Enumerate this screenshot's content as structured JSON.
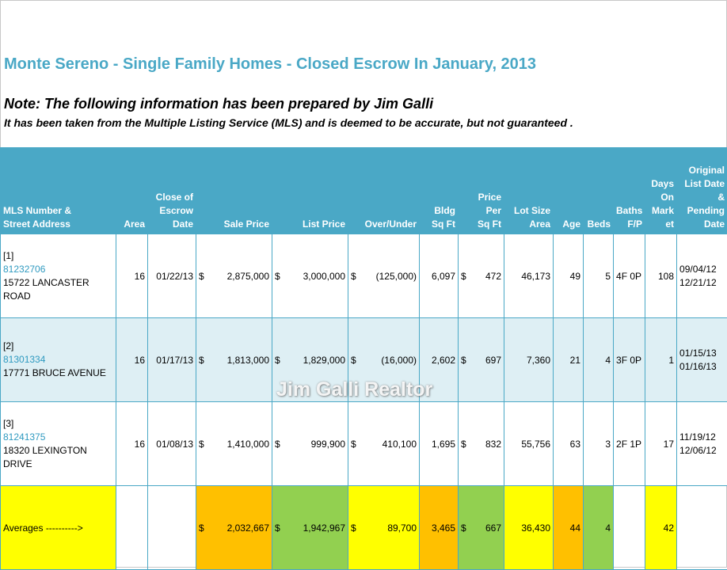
{
  "header": {
    "title": "Monte Sereno - Single Family Homes - Closed Escrow In January, 2013",
    "note": "Note:  The following information has been prepared by Jim Galli",
    "disclaimer": "It has been taken from the Multiple Listing Service (MLS) and is deemed to be accurate, but not guaranteed ."
  },
  "columns": {
    "mls": [
      "MLS Number &",
      "Street Address"
    ],
    "area": [
      "Area"
    ],
    "close": [
      "Close of",
      "Escrow",
      "Date"
    ],
    "sale": [
      "Sale Price"
    ],
    "list": [
      "List Price"
    ],
    "over": [
      "Over/Under"
    ],
    "bldg": [
      "Bldg",
      "Sq Ft"
    ],
    "ppsf": [
      "Price",
      "Per",
      "Sq Ft"
    ],
    "lot": [
      "Lot Size",
      "Area"
    ],
    "age": [
      "Age"
    ],
    "beds": [
      "Beds"
    ],
    "baths": [
      "Baths",
      "F/P"
    ],
    "dom": [
      "Days",
      "On",
      "Mark",
      "et"
    ],
    "orig": [
      "Original",
      "List Date",
      "&",
      "Pending",
      "Date"
    ]
  },
  "currency_symbol": "$",
  "rows": [
    {
      "index": "[1]",
      "mls": "81232706",
      "street": [
        "15722 LANCASTER",
        "ROAD"
      ],
      "area": "16",
      "close": "01/22/13",
      "sale": "2,875,000",
      "list": "3,000,000",
      "over": "(125,000)",
      "bldg": "6,097",
      "ppsf": "472",
      "lot": "46,173",
      "age": "49",
      "beds": "5",
      "baths": "4F 0P",
      "dom": "108",
      "orig": "09/04/12",
      "pending": "12/21/12"
    },
    {
      "index": "[2]",
      "mls": "81301334",
      "street": [
        "17771 BRUCE AVENUE"
      ],
      "area": "16",
      "close": "01/17/13",
      "sale": "1,813,000",
      "list": "1,829,000",
      "over": "(16,000)",
      "bldg": "2,602",
      "ppsf": "697",
      "lot": "7,360",
      "age": "21",
      "beds": "4",
      "baths": "3F 0P",
      "dom": "1",
      "orig": "01/15/13",
      "pending": "01/16/13"
    },
    {
      "index": "[3]",
      "mls": "81241375",
      "street": [
        "18320 LEXINGTON",
        "DRIVE"
      ],
      "area": "16",
      "close": "01/08/13",
      "sale": "1,410,000",
      "list": "999,900",
      "over": "410,100",
      "bldg": "1,695",
      "ppsf": "832",
      "lot": "55,756",
      "age": "63",
      "beds": "3",
      "baths": "2F 1P",
      "dom": "17",
      "orig": "11/19/12",
      "pending": "12/06/12"
    }
  ],
  "averages": {
    "label": "Averages ---------->",
    "sale": "2,032,667",
    "list": "1,942,967",
    "over": "89,700",
    "bldg": "3,465",
    "ppsf": "667",
    "lot": "36,430",
    "age": "44",
    "beds": "4",
    "dom": "42"
  },
  "watermark": "Jim Galli Realtor",
  "colors": {
    "header_bg": "#4aa8c6",
    "title": "#4aa8c6",
    "row_alt": "#deeff4",
    "yellow": "#ffff00",
    "orange": "#ffc000",
    "green": "#92d050"
  }
}
